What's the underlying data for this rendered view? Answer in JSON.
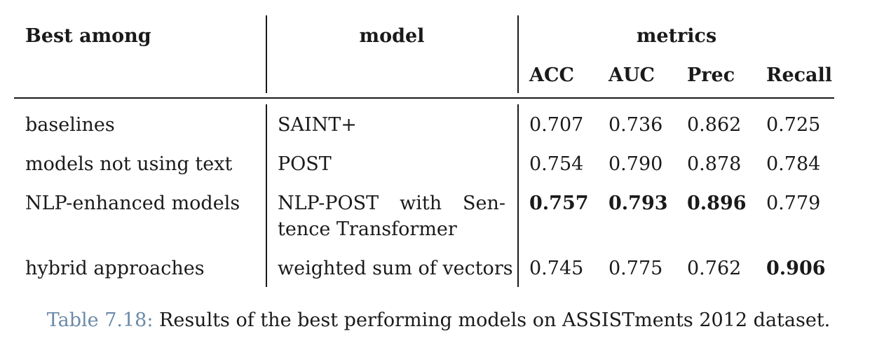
{
  "table": {
    "headers": {
      "best_among": "Best among",
      "model": "model",
      "metrics": "metrics",
      "acc": "ACC",
      "auc": "AUC",
      "prec": "Prec",
      "recall": "Recall"
    },
    "rows": [
      {
        "best_among": "baselines",
        "model": "SAINT+",
        "acc": "0.707",
        "auc": "0.736",
        "prec": "0.862",
        "recall": "0.725"
      },
      {
        "best_among": "models not using text",
        "model": "POST",
        "acc": "0.754",
        "auc": "0.790",
        "prec": "0.878",
        "recall": "0.784"
      },
      {
        "best_among": "NLP-enhanced models",
        "model_line1_words": [
          "NLP-POST",
          "with",
          "Sen-"
        ],
        "model_line2": "tence Transformer",
        "acc": "0.757",
        "auc": "0.793",
        "prec": "0.896",
        "recall": "0.779"
      },
      {
        "best_among": "hybrid approaches",
        "model": "weighted sum of vectors",
        "acc": "0.745",
        "auc": "0.775",
        "prec": "0.762",
        "recall": "0.906"
      }
    ]
  },
  "caption": {
    "label": "Table 7.18:",
    "text": " Results of the best performing models on ASSISTments 2012 dataset."
  }
}
